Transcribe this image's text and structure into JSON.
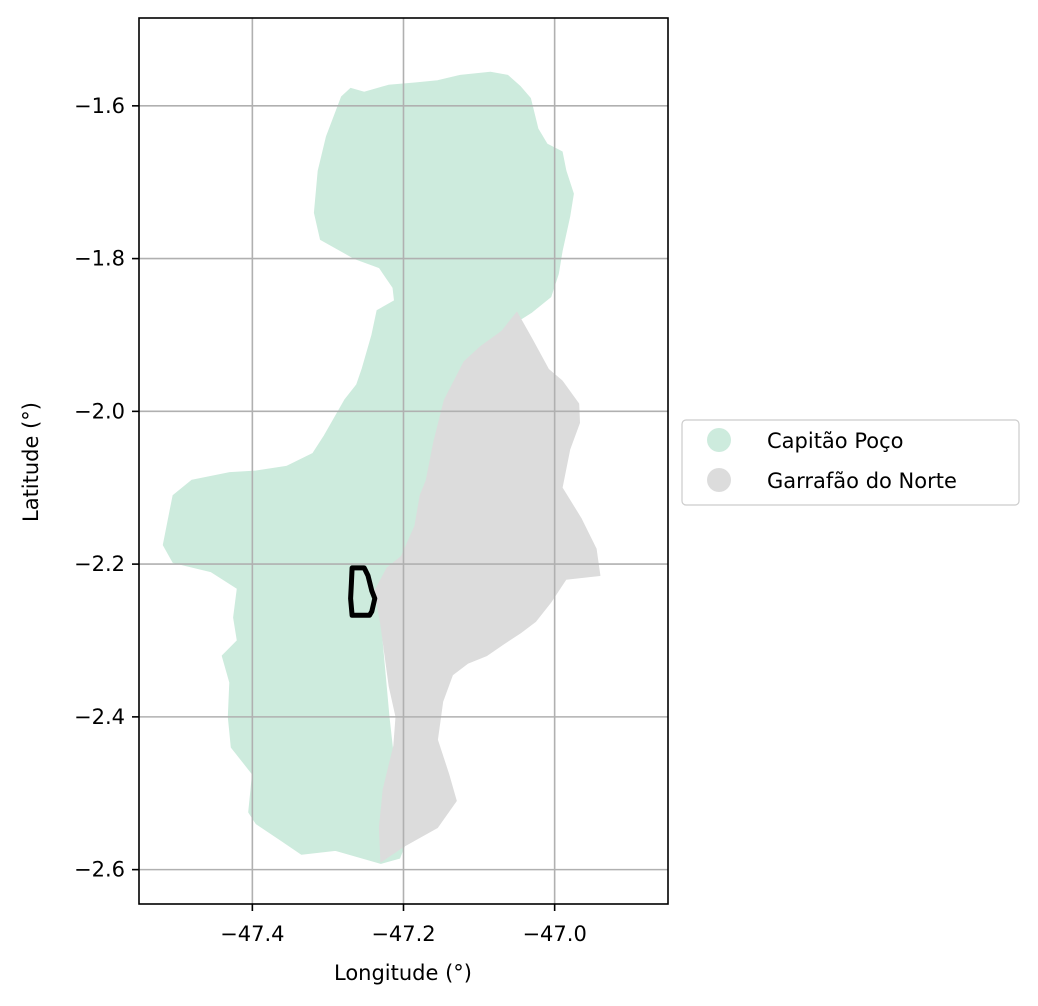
{
  "chart_data": {
    "type": "map",
    "title": "",
    "xlabel": "Longitude (°)",
    "ylabel": "Latitude (°)",
    "xlim": [
      -47.55,
      -46.85
    ],
    "ylim": [
      -2.645,
      -1.485
    ],
    "xticks": [
      -47.4,
      -47.2,
      -47.0
    ],
    "xtick_labels": [
      "−47.4",
      "−47.2",
      "−47.0"
    ],
    "yticks": [
      -1.6,
      -1.8,
      -2.0,
      -2.2,
      -2.4,
      -2.6
    ],
    "ytick_labels": [
      "−1.6",
      "−1.8",
      "−2.0",
      "−2.2",
      "−2.4",
      "−2.6"
    ],
    "grid": true,
    "legend_position": "right",
    "regions": [
      {
        "name": "Capitão Poço",
        "color": "#cdebdd",
        "polygon": [
          [
            -47.282,
            -1.588
          ],
          [
            -47.27,
            -1.577
          ],
          [
            -47.252,
            -1.582
          ],
          [
            -47.22,
            -1.573
          ],
          [
            -47.185,
            -1.57
          ],
          [
            -47.155,
            -1.567
          ],
          [
            -47.125,
            -1.56
          ],
          [
            -47.085,
            -1.556
          ],
          [
            -47.062,
            -1.56
          ],
          [
            -47.045,
            -1.575
          ],
          [
            -47.032,
            -1.59
          ],
          [
            -47.022,
            -1.63
          ],
          [
            -47.01,
            -1.65
          ],
          [
            -46.99,
            -1.66
          ],
          [
            -46.985,
            -1.685
          ],
          [
            -46.975,
            -1.715
          ],
          [
            -46.98,
            -1.745
          ],
          [
            -46.99,
            -1.79
          ],
          [
            -46.995,
            -1.82
          ],
          [
            -47.005,
            -1.85
          ],
          [
            -47.03,
            -1.87
          ],
          [
            -47.07,
            -1.895
          ],
          [
            -47.098,
            -1.915
          ],
          [
            -47.12,
            -1.935
          ],
          [
            -47.146,
            -1.985
          ],
          [
            -47.148,
            -2.0
          ],
          [
            -47.16,
            -2.04
          ],
          [
            -47.17,
            -2.09
          ],
          [
            -47.178,
            -2.11
          ],
          [
            -47.185,
            -2.15
          ],
          [
            -47.203,
            -2.19
          ],
          [
            -47.215,
            -2.23
          ],
          [
            -47.23,
            -2.28
          ],
          [
            -47.219,
            -2.4
          ],
          [
            -47.21,
            -2.48
          ],
          [
            -47.175,
            -2.515
          ],
          [
            -47.18,
            -2.535
          ],
          [
            -47.195,
            -2.56
          ],
          [
            -47.205,
            -2.585
          ],
          [
            -47.23,
            -2.592
          ],
          [
            -47.29,
            -2.575
          ],
          [
            -47.335,
            -2.58
          ],
          [
            -47.362,
            -2.562
          ],
          [
            -47.395,
            -2.54
          ],
          [
            -47.405,
            -2.525
          ],
          [
            -47.4,
            -2.475
          ],
          [
            -47.428,
            -2.44
          ],
          [
            -47.432,
            -2.4
          ],
          [
            -47.43,
            -2.355
          ],
          [
            -47.44,
            -2.32
          ],
          [
            -47.42,
            -2.3
          ],
          [
            -47.425,
            -2.27
          ],
          [
            -47.42,
            -2.232
          ],
          [
            -47.455,
            -2.21
          ],
          [
            -47.505,
            -2.198
          ],
          [
            -47.518,
            -2.175
          ],
          [
            -47.512,
            -2.145
          ],
          [
            -47.505,
            -2.11
          ],
          [
            -47.48,
            -2.09
          ],
          [
            -47.43,
            -2.08
          ],
          [
            -47.395,
            -2.078
          ],
          [
            -47.355,
            -2.072
          ],
          [
            -47.32,
            -2.055
          ],
          [
            -47.305,
            -2.032
          ],
          [
            -47.278,
            -1.985
          ],
          [
            -47.262,
            -1.965
          ],
          [
            -47.255,
            -1.945
          ],
          [
            -47.242,
            -1.9
          ],
          [
            -47.235,
            -1.868
          ],
          [
            -47.212,
            -1.855
          ],
          [
            -47.214,
            -1.838
          ],
          [
            -47.232,
            -1.812
          ],
          [
            -47.265,
            -1.8
          ],
          [
            -47.31,
            -1.775
          ],
          [
            -47.318,
            -1.74
          ],
          [
            -47.313,
            -1.685
          ],
          [
            -47.302,
            -1.64
          ]
        ]
      },
      {
        "name": "Garrafão do Norte",
        "color": "#dcdcdc",
        "polygon": [
          [
            -47.098,
            -1.915
          ],
          [
            -47.07,
            -1.895
          ],
          [
            -47.05,
            -1.87
          ],
          [
            -47.03,
            -1.905
          ],
          [
            -47.008,
            -1.945
          ],
          [
            -46.99,
            -1.96
          ],
          [
            -46.968,
            -1.99
          ],
          [
            -46.967,
            -2.015
          ],
          [
            -46.98,
            -2.05
          ],
          [
            -46.99,
            -2.1
          ],
          [
            -46.965,
            -2.14
          ],
          [
            -46.945,
            -2.18
          ],
          [
            -46.94,
            -2.215
          ],
          [
            -46.985,
            -2.22
          ],
          [
            -47.005,
            -2.25
          ],
          [
            -47.025,
            -2.275
          ],
          [
            -47.045,
            -2.29
          ],
          [
            -47.068,
            -2.305
          ],
          [
            -47.09,
            -2.32
          ],
          [
            -47.115,
            -2.33
          ],
          [
            -47.135,
            -2.345
          ],
          [
            -47.148,
            -2.38
          ],
          [
            -47.155,
            -2.43
          ],
          [
            -47.14,
            -2.475
          ],
          [
            -47.13,
            -2.51
          ],
          [
            -47.155,
            -2.545
          ],
          [
            -47.2,
            -2.57
          ],
          [
            -47.23,
            -2.59
          ],
          [
            -47.232,
            -2.545
          ],
          [
            -47.227,
            -2.495
          ],
          [
            -47.213,
            -2.438
          ],
          [
            -47.21,
            -2.4
          ],
          [
            -47.219,
            -2.36
          ],
          [
            -47.23,
            -2.28
          ],
          [
            -47.238,
            -2.235
          ],
          [
            -47.222,
            -2.205
          ],
          [
            -47.203,
            -2.19
          ],
          [
            -47.185,
            -2.15
          ],
          [
            -47.178,
            -2.11
          ],
          [
            -47.17,
            -2.09
          ],
          [
            -47.16,
            -2.04
          ],
          [
            -47.146,
            -1.985
          ],
          [
            -47.12,
            -1.935
          ]
        ]
      }
    ],
    "highlight_outline": {
      "color": "#000000",
      "polygon": [
        [
          -47.268,
          -2.205
        ],
        [
          -47.252,
          -2.205
        ],
        [
          -47.247,
          -2.215
        ],
        [
          -47.242,
          -2.235
        ],
        [
          -47.238,
          -2.245
        ],
        [
          -47.242,
          -2.262
        ],
        [
          -47.245,
          -2.267
        ],
        [
          -47.268,
          -2.267
        ],
        [
          -47.27,
          -2.245
        ],
        [
          -47.269,
          -2.225
        ]
      ]
    },
    "legend": [
      {
        "label": "Capitão Poço",
        "color": "#cdebdd"
      },
      {
        "label": "Garrafão do Norte",
        "color": "#dcdcdc"
      }
    ]
  }
}
